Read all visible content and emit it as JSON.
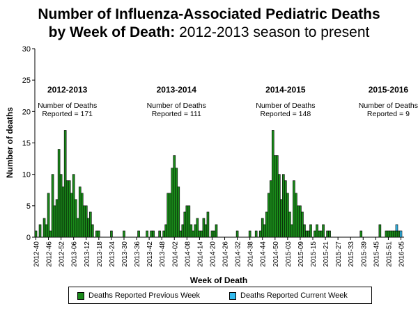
{
  "title": {
    "line1": "Number of Influenza-Associated Pediatric Deaths",
    "line2_bold": "by Week of Death:",
    "line2_rest": " 2012-2013 season to present"
  },
  "colors": {
    "previous": "#1a8a1a",
    "current": "#33bbee",
    "border": "#000000"
  },
  "chart_data": {
    "type": "bar",
    "title": "Number of Influenza-Associated Pediatric Deaths by Week of Death: 2012-2013 season to present",
    "xlabel": "Week of Death",
    "ylabel": "Number of deaths",
    "ylim": [
      0,
      30
    ],
    "yticks": [
      0,
      5,
      10,
      15,
      20,
      25,
      30
    ],
    "grid": false,
    "legend_position": "bottom",
    "xtick_labels": [
      "2012-40",
      "2012-46",
      "2012-52",
      "2013-06",
      "2013-12",
      "2013-18",
      "2013-24",
      "2013-30",
      "2013-36",
      "2013-42",
      "2013-48",
      "2014-02",
      "2014-08",
      "2014-14",
      "2014-20",
      "2014-26",
      "2014-32",
      "2014-38",
      "2014-44",
      "2014-50",
      "2015-03",
      "2015-09",
      "2015-15",
      "2015-21",
      "2015-27",
      "2015-33",
      "2015-39",
      "2015-45",
      "2015-51",
      "2016-05"
    ],
    "xtick_index": [
      0,
      6,
      12,
      18,
      24,
      30,
      36,
      42,
      48,
      54,
      60,
      66,
      72,
      78,
      84,
      90,
      96,
      102,
      108,
      114,
      120,
      126,
      132,
      138,
      144,
      150,
      156,
      162,
      168,
      174
    ],
    "categories_count": 176,
    "series": [
      {
        "name": "Deaths Reported Previous Week",
        "values": [
          1,
          0,
          2,
          0,
          3,
          2,
          7,
          1,
          10,
          5,
          6,
          14,
          10,
          8,
          17,
          9,
          9,
          7,
          10,
          6,
          3,
          8,
          7,
          5,
          5,
          3,
          4,
          2,
          0,
          1,
          1,
          0,
          0,
          0,
          0,
          0,
          1,
          0,
          0,
          0,
          0,
          0,
          1,
          0,
          0,
          0,
          0,
          0,
          0,
          1,
          0,
          0,
          0,
          1,
          0,
          1,
          1,
          0,
          0,
          1,
          0,
          1,
          2,
          7,
          7,
          11,
          13,
          11,
          8,
          1,
          2,
          4,
          5,
          5,
          2,
          1,
          2,
          3,
          1,
          1,
          3,
          2,
          4,
          0,
          1,
          1,
          2,
          0,
          0,
          0,
          0,
          0,
          0,
          0,
          0,
          0,
          1,
          0,
          0,
          0,
          0,
          0,
          1,
          0,
          0,
          1,
          0,
          1,
          3,
          2,
          4,
          7,
          9,
          17,
          13,
          13,
          10,
          6,
          10,
          9,
          7,
          4,
          2,
          9,
          7,
          5,
          5,
          4,
          2,
          1,
          1,
          2,
          0,
          1,
          2,
          1,
          1,
          2,
          0,
          1,
          1,
          0,
          0,
          0,
          0,
          0,
          0,
          0,
          0,
          0,
          0,
          0,
          0,
          0,
          0,
          1,
          0,
          0,
          0,
          0,
          0,
          0,
          0,
          0,
          2,
          0,
          0,
          1,
          1,
          1,
          1,
          1,
          1,
          1,
          0,
          0,
          0
        ]
      },
      {
        "name": "Deaths Reported Current Week",
        "values": [
          0,
          0,
          0,
          0,
          0,
          0,
          0,
          0,
          0,
          0,
          0,
          0,
          0,
          0,
          0,
          0,
          0,
          0,
          0,
          0,
          0,
          0,
          0,
          0,
          0,
          0,
          0,
          0,
          0,
          0,
          0,
          0,
          0,
          0,
          0,
          0,
          0,
          0,
          0,
          0,
          0,
          0,
          0,
          0,
          0,
          0,
          0,
          0,
          0,
          0,
          0,
          0,
          0,
          0,
          0,
          0,
          0,
          0,
          0,
          0,
          0,
          0,
          0,
          0,
          0,
          0,
          0,
          0,
          0,
          0,
          0,
          0,
          0,
          0,
          0,
          0,
          0,
          0,
          0,
          0,
          0,
          0,
          0,
          0,
          0,
          0,
          0,
          0,
          0,
          0,
          0,
          0,
          0,
          0,
          0,
          0,
          0,
          0,
          0,
          0,
          0,
          0,
          0,
          0,
          0,
          0,
          0,
          0,
          0,
          0,
          0,
          0,
          0,
          0,
          0,
          0,
          0,
          0,
          0,
          0,
          0,
          0,
          0,
          0,
          0,
          0,
          0,
          0,
          0,
          0,
          0,
          0,
          0,
          0,
          0,
          0,
          0,
          0,
          0,
          0,
          0,
          0,
          0,
          0,
          0,
          0,
          0,
          0,
          0,
          0,
          0,
          0,
          0,
          0,
          0,
          0,
          0,
          0,
          0,
          0,
          0,
          0,
          0,
          0,
          0,
          0,
          0,
          0,
          0,
          0,
          0,
          0,
          1,
          0,
          1,
          0
        ]
      }
    ],
    "annotations": [
      {
        "season": "2012-2013",
        "line1": "Number of Deaths",
        "line2": "Reported = 171",
        "center_index": 15
      },
      {
        "season": "2013-2014",
        "line1": "Number of Deaths",
        "line2": "Reported = 111",
        "center_index": 67
      },
      {
        "season": "2014-2015",
        "line1": "Number of Deaths",
        "line2": "Reported = 148",
        "center_index": 119
      },
      {
        "season": "2015-2016",
        "line1": "Number of Deaths",
        "line2": "Reported = 9",
        "center_index": 168
      }
    ]
  },
  "legend": {
    "previous_label": "Deaths Reported Previous Week",
    "current_label": "Deaths Reported Current Week"
  }
}
